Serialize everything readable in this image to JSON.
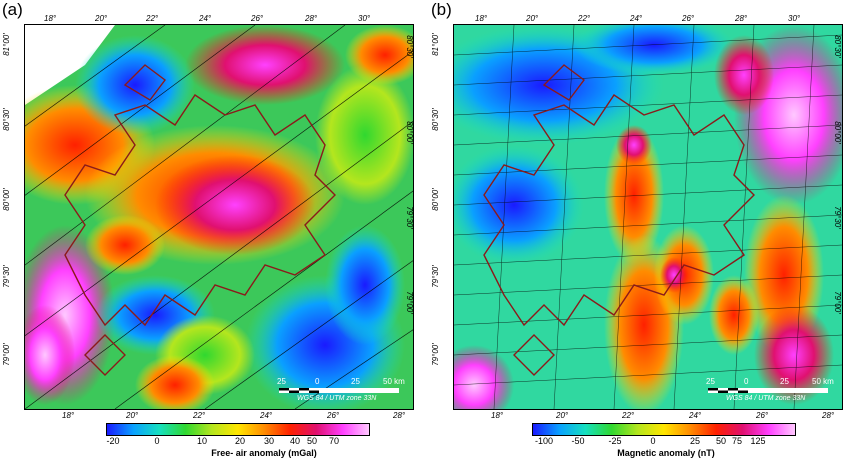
{
  "panels": [
    {
      "label": "(a)",
      "top_ticks": [
        "18°",
        "20°",
        "22°",
        "24°",
        "26°",
        "28°",
        "30°"
      ],
      "bottom_ticks": [
        "18°",
        "20°",
        "22°",
        "24°",
        "26°",
        "28°"
      ],
      "left_ticks": [
        "81°00'",
        "80°30'",
        "80°00'",
        "79°30'",
        "79°00'"
      ],
      "right_ticks": [
        "80°30'",
        "80°00'",
        "79°30'",
        "79°00'"
      ],
      "scale": {
        "labels": [
          "25",
          "0",
          "25",
          "50 km"
        ],
        "projection": "WGS 84 / UTM zone 33N"
      },
      "colorbar": {
        "title": "Free- air anomaly (mGal)",
        "ticks": [
          "-20",
          "0",
          "10",
          "20",
          "30",
          "40",
          "50",
          "70"
        ],
        "colors": [
          "#1a1aff",
          "#0aa0ff",
          "#16e0c0",
          "#30d830",
          "#b4e61e",
          "#ffe600",
          "#ff8c00",
          "#ff2000",
          "#e01070",
          "#ff40ff",
          "#ffc8ff"
        ]
      }
    },
    {
      "label": "(b)",
      "top_ticks": [
        "18°",
        "20°",
        "22°",
        "24°",
        "26°",
        "28°",
        "30°"
      ],
      "bottom_ticks": [
        "18°",
        "20°",
        "22°",
        "24°",
        "26°",
        "28°"
      ],
      "left_ticks": [
        "81°00'",
        "80°30'",
        "80°00'",
        "79°30'",
        "79°00'"
      ],
      "right_ticks": [
        "80°30'",
        "80°00'",
        "79°30'",
        "79°00'"
      ],
      "scale": {
        "labels": [
          "25",
          "0",
          "25",
          "50 km"
        ],
        "projection": "WGS 84 / UTM zone 33N"
      },
      "colorbar": {
        "title": "Magnetic anomaly (nT)",
        "ticks": [
          "-100",
          "-50",
          "-25",
          "0",
          "25",
          "50",
          "75",
          "125"
        ],
        "colors": [
          "#1a1aff",
          "#0aa0ff",
          "#16e0c0",
          "#30d830",
          "#b4e61e",
          "#ffe600",
          "#ff8c00",
          "#ff2000",
          "#e01070",
          "#ff40ff",
          "#ffc8ff"
        ]
      }
    }
  ]
}
